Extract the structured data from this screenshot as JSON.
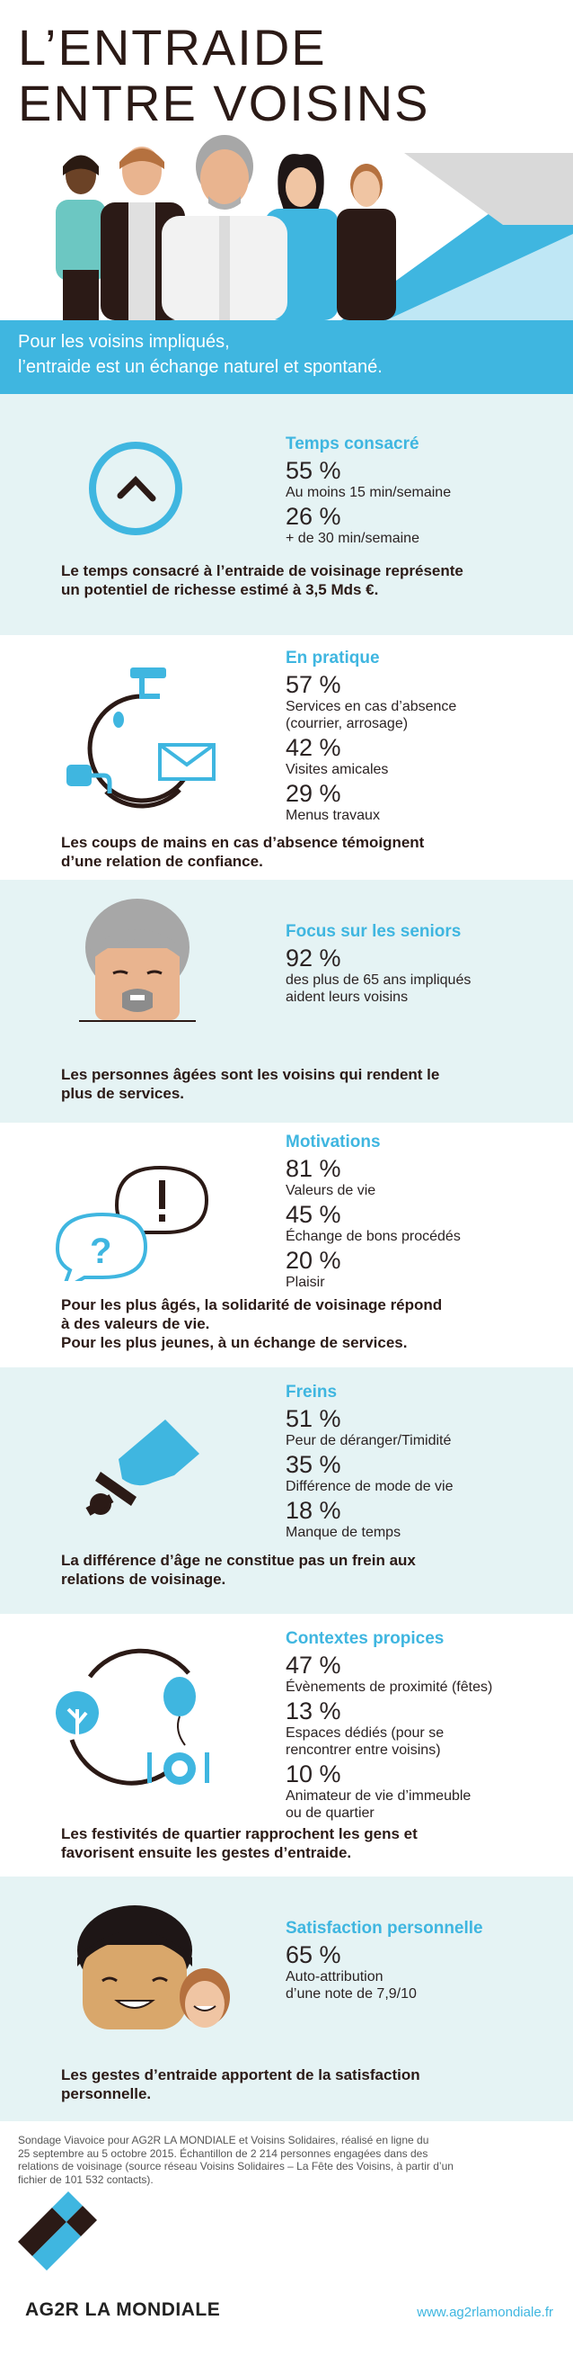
{
  "header": {
    "title_line1": "L’ENTRAIDE",
    "title_line2": "ENTRE VOISINS",
    "banner_line1": "Pour les voisins impliqués,",
    "banner_line2": "l’entraide est un échange naturel et spontané."
  },
  "sections": {
    "temps": {
      "title": "Temps consacré",
      "stats": [
        {
          "pct": "55 %",
          "desc": "Au moins 15 min/semaine"
        },
        {
          "pct": "26 %",
          "desc": "+ de 30 min/semaine"
        }
      ],
      "conclusion_line1": "Le temps consacré à l’entraide de voisinage représente",
      "conclusion_line2": "un potentiel de richesse estimé à 3,5 Mds €.",
      "icon": "clock-icon"
    },
    "pratique": {
      "title": "En pratique",
      "stats": [
        {
          "pct": "57 %",
          "desc": "Services en cas d’absence",
          "desc2": "(courrier, arrosage)"
        },
        {
          "pct": "42 %",
          "desc": "Visites amicales"
        },
        {
          "pct": "29 %",
          "desc": "Menus travaux"
        }
      ],
      "conclusion_line1": "Les coups de mains en cas d’absence témoignent",
      "conclusion_line2": "d’une relation de confiance.",
      "icon": "services-cycle-icon"
    },
    "seniors": {
      "title": "Focus sur les seniors",
      "stats": [
        {
          "pct": "92 %",
          "desc": "des plus de 65 ans impliqués",
          "desc2": "aident leurs voisins"
        }
      ],
      "conclusion_line1": "Les personnes âgées sont les voisins qui rendent le",
      "conclusion_line2": "plus de services.",
      "icon": "senior-face-icon"
    },
    "motivations": {
      "title": "Motivations",
      "stats": [
        {
          "pct": "81 %",
          "desc": "Valeurs de vie"
        },
        {
          "pct": "45 %",
          "desc": "Échange de bons procédés"
        },
        {
          "pct": "20 %",
          "desc": "Plaisir"
        }
      ],
      "conclusion_line1": "Pour les plus âgés, la solidarité de voisinage répond",
      "conclusion_line2": "à des valeurs de vie.",
      "conclusion_line3": "Pour les plus jeunes, à un échange de services.",
      "icon": "speech-bubbles-icon"
    },
    "freins": {
      "title": "Freins",
      "stats": [
        {
          "pct": "51 %",
          "desc": "Peur de déranger/Timidité"
        },
        {
          "pct": "35 %",
          "desc": "Différence de mode de vie"
        },
        {
          "pct": "18 %",
          "desc": "Manque de temps"
        }
      ],
      "conclusion_line1": "La différence d’âge ne constitue pas un frein aux",
      "conclusion_line2": "relations de voisinage.",
      "icon": "foot-brake-icon"
    },
    "contextes": {
      "title": "Contextes propices",
      "stats": [
        {
          "pct": "47 %",
          "desc": "Évènements de proximité (fêtes)"
        },
        {
          "pct": "13 %",
          "desc": "Espaces dédiés (pour se",
          "desc2": "rencontrer entre voisins)"
        },
        {
          "pct": "10 %",
          "desc": "Animateur de vie d’immeuble",
          "desc2": "ou de quartier"
        }
      ],
      "conclusion_line1": "Les festivités de quartier rapprochent les gens et",
      "conclusion_line2": "favorisent ensuite les gestes d’entraide.",
      "icon": "party-cycle-icon"
    },
    "satisfaction": {
      "title": "Satisfaction personnelle",
      "stats": [
        {
          "pct": "65 %",
          "desc": "Auto-attribution",
          "desc2": "d’une note de 7,9/10"
        }
      ],
      "conclusion_line1": "Les gestes d’entraide apportent de la satisfaction",
      "conclusion_line2": "personnelle.",
      "icon": "smiling-faces-icon"
    }
  },
  "footer": {
    "note_line1": "Sondage Viavoice pour AG2R LA MONDIALE et Voisins Solidaires, réalisé en ligne du",
    "note_line2": "25 septembre au 5 octobre 2015. Échantillon de 2 214 personnes engagées dans des",
    "note_line3": "relations de voisinage (source réseau Voisins Solidaires – La Fête des Voisins, à partir d’un",
    "note_line4": "fichier de 101 532 contacts).",
    "brand": "AG2R LA MONDIALE",
    "website": "www.ag2rlamondiale.fr"
  },
  "colors": {
    "accent": "#3fb6e0",
    "light_bg": "#e5f3f4",
    "dark_text": "#2b1a16"
  }
}
